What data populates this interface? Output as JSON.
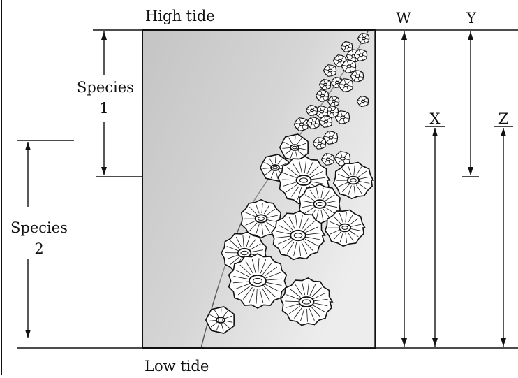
{
  "labels": {
    "high_tide": "High tide",
    "low_tide": "Low tide",
    "species1_word": "Species",
    "species1_num": "1",
    "species2_word": "Species",
    "species2_num": "2",
    "W": "W",
    "X": "X",
    "Y": "Y",
    "Z": "Z"
  },
  "colors": {
    "ink": "#111111",
    "rock_light": "#f4f4f4",
    "rock_dark": "#c8c8c8",
    "barnacle_fill": "#ffffff"
  },
  "icons": {
    "barnacle": "barnacle-icon"
  }
}
